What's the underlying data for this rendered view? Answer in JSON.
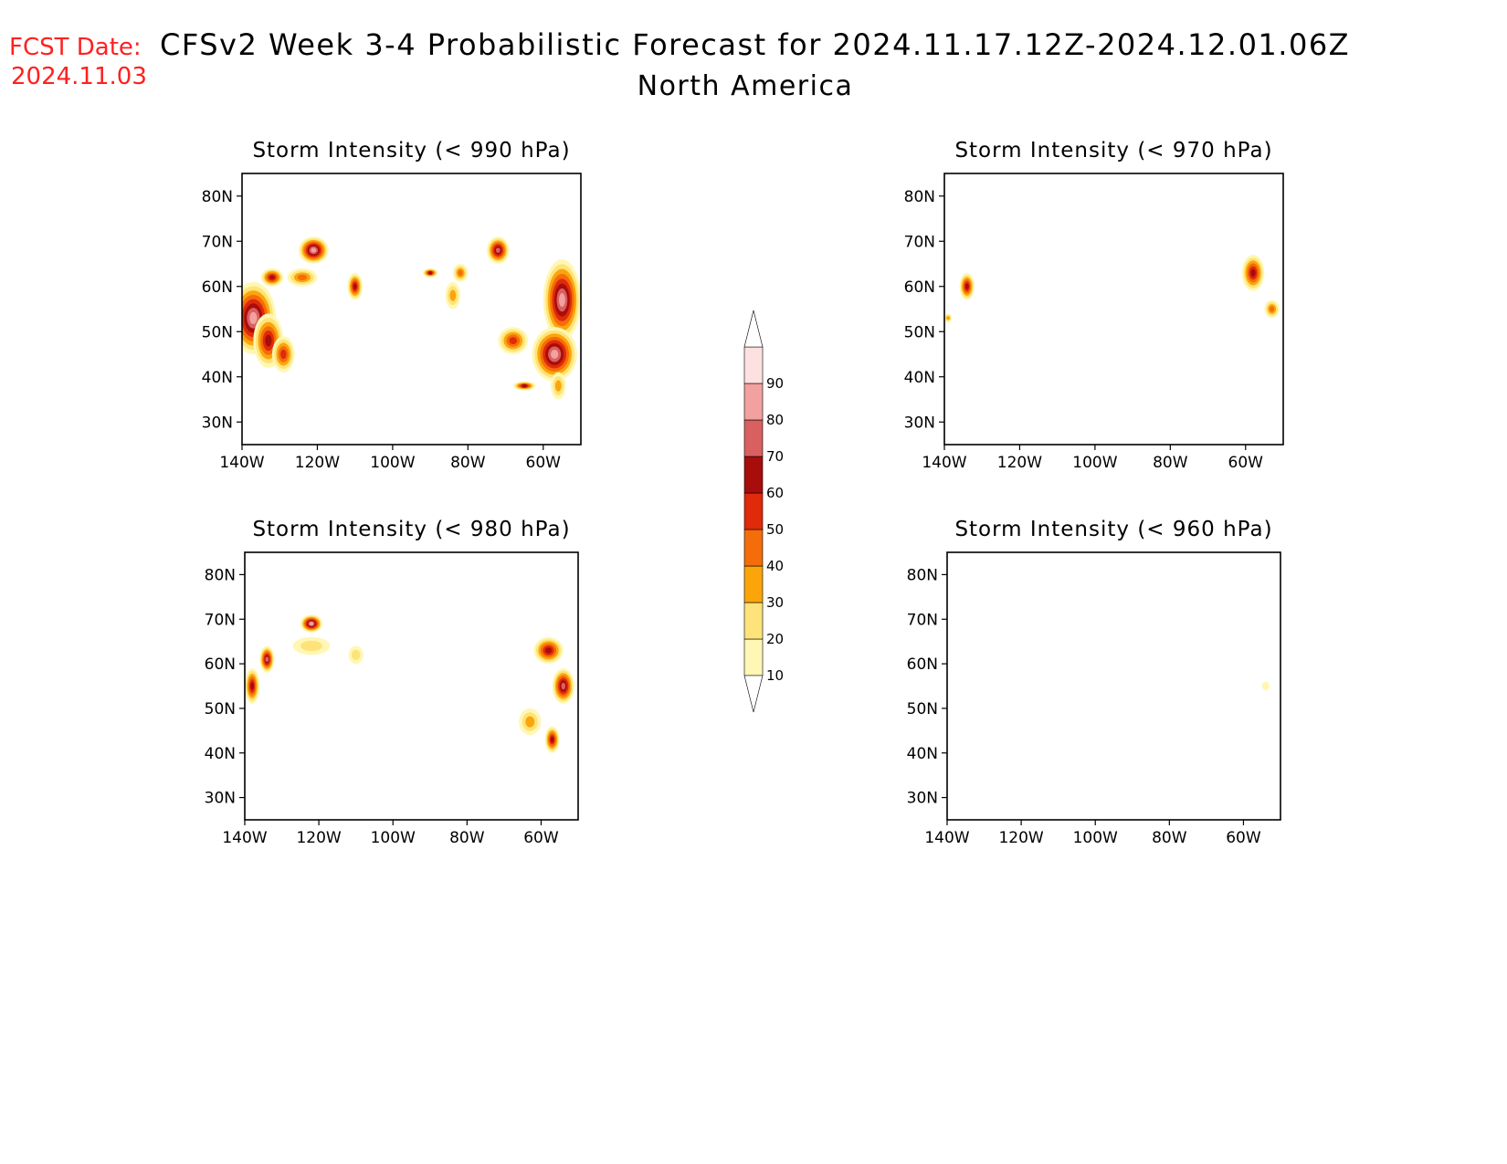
{
  "header": {
    "fcst_label": "FCST Date:",
    "fcst_date": "2024.11.03",
    "title": "CFSv2 Week 3-4 Probabilistic Forecast for 2024.11.17.12Z-2024.12.01.06Z",
    "subtitle": "North America"
  },
  "colors": {
    "title": "#000000",
    "fcst": "#ff2020",
    "coast": "#000000"
  },
  "axes": {
    "lat_ticks": [
      "80N",
      "70N",
      "60N",
      "50N",
      "40N",
      "30N"
    ],
    "lat_values": [
      80,
      70,
      60,
      50,
      40,
      30
    ],
    "lon_ticks": [
      "140W",
      "120W",
      "100W",
      "80W",
      "60W"
    ],
    "lon_values": [
      -140,
      -120,
      -100,
      -80,
      -60
    ],
    "lon_range": [
      -140,
      -50
    ],
    "lat_range": [
      25,
      85
    ]
  },
  "colorbar": {
    "labels": [
      "10",
      "20",
      "30",
      "40",
      "50",
      "60",
      "70",
      "80",
      "90"
    ],
    "colors": [
      "#fff7b3",
      "#fde37a",
      "#fca50a",
      "#f46d0a",
      "#e02a0a",
      "#a70d0a",
      "#d96060",
      "#f2a0a0",
      "#fde0e0"
    ]
  },
  "panels": [
    {
      "id": "990",
      "title": "Storm Intensity (< 990 hPa)",
      "blobs": [
        {
          "lon": -137,
          "lat": 53,
          "prob": 80,
          "rlon": 6,
          "rlat": 8
        },
        {
          "lon": -133,
          "lat": 48,
          "prob": 60,
          "rlon": 4,
          "rlat": 6
        },
        {
          "lon": -132,
          "lat": 62,
          "prob": 60,
          "rlon": 3,
          "rlat": 2
        },
        {
          "lon": -129,
          "lat": 45,
          "prob": 50,
          "rlon": 3,
          "rlat": 4
        },
        {
          "lon": -121,
          "lat": 68,
          "prob": 80,
          "rlon": 4,
          "rlat": 3
        },
        {
          "lon": -124,
          "lat": 62,
          "prob": 40,
          "rlon": 4,
          "rlat": 2
        },
        {
          "lon": -110,
          "lat": 60,
          "prob": 60,
          "rlon": 2,
          "rlat": 3
        },
        {
          "lon": -90,
          "lat": 63,
          "prob": 60,
          "rlon": 2,
          "rlat": 1
        },
        {
          "lon": -82,
          "lat": 63,
          "prob": 40,
          "rlon": 2,
          "rlat": 2
        },
        {
          "lon": -84,
          "lat": 58,
          "prob": 30,
          "rlon": 2,
          "rlat": 3
        },
        {
          "lon": -72,
          "lat": 68,
          "prob": 70,
          "rlon": 3,
          "rlat": 3
        },
        {
          "lon": -55,
          "lat": 57,
          "prob": 80,
          "rlon": 5,
          "rlat": 9
        },
        {
          "lon": -57,
          "lat": 45,
          "prob": 80,
          "rlon": 6,
          "rlat": 6
        },
        {
          "lon": -68,
          "lat": 48,
          "prob": 50,
          "rlon": 4,
          "rlat": 3
        },
        {
          "lon": -65,
          "lat": 38,
          "prob": 60,
          "rlon": 3,
          "rlat": 1
        },
        {
          "lon": -56,
          "lat": 38,
          "prob": 30,
          "rlon": 2,
          "rlat": 3
        }
      ]
    },
    {
      "id": "970",
      "title": "Storm Intensity (< 970 hPa)",
      "blobs": [
        {
          "lon": -134,
          "lat": 60,
          "prob": 60,
          "rlon": 2,
          "rlat": 3
        },
        {
          "lon": -139,
          "lat": 53,
          "prob": 30,
          "rlon": 1,
          "rlat": 1
        },
        {
          "lon": -58,
          "lat": 63,
          "prob": 60,
          "rlon": 3,
          "rlat": 4
        },
        {
          "lon": -53,
          "lat": 55,
          "prob": 40,
          "rlon": 2,
          "rlat": 2
        }
      ]
    },
    {
      "id": "980",
      "title": "Storm Intensity (< 980 hPa)",
      "blobs": [
        {
          "lon": -138,
          "lat": 55,
          "prob": 60,
          "rlon": 2,
          "rlat": 4
        },
        {
          "lon": -134,
          "lat": 61,
          "prob": 70,
          "rlon": 2,
          "rlat": 3
        },
        {
          "lon": -122,
          "lat": 69,
          "prob": 80,
          "rlon": 3,
          "rlat": 2
        },
        {
          "lon": -122,
          "lat": 64,
          "prob": 20,
          "rlon": 5,
          "rlat": 2
        },
        {
          "lon": -110,
          "lat": 62,
          "prob": 20,
          "rlon": 2,
          "rlat": 2
        },
        {
          "lon": -58,
          "lat": 63,
          "prob": 60,
          "rlon": 4,
          "rlat": 3
        },
        {
          "lon": -54,
          "lat": 55,
          "prob": 70,
          "rlon": 3,
          "rlat": 4
        },
        {
          "lon": -57,
          "lat": 43,
          "prob": 60,
          "rlon": 2,
          "rlat": 3
        },
        {
          "lon": -63,
          "lat": 47,
          "prob": 30,
          "rlon": 3,
          "rlat": 3
        }
      ]
    },
    {
      "id": "960",
      "title": "Storm Intensity (< 960 hPa)",
      "blobs": [
        {
          "lon": -54,
          "lat": 55,
          "prob": 10,
          "rlon": 1,
          "rlat": 1
        }
      ]
    }
  ]
}
